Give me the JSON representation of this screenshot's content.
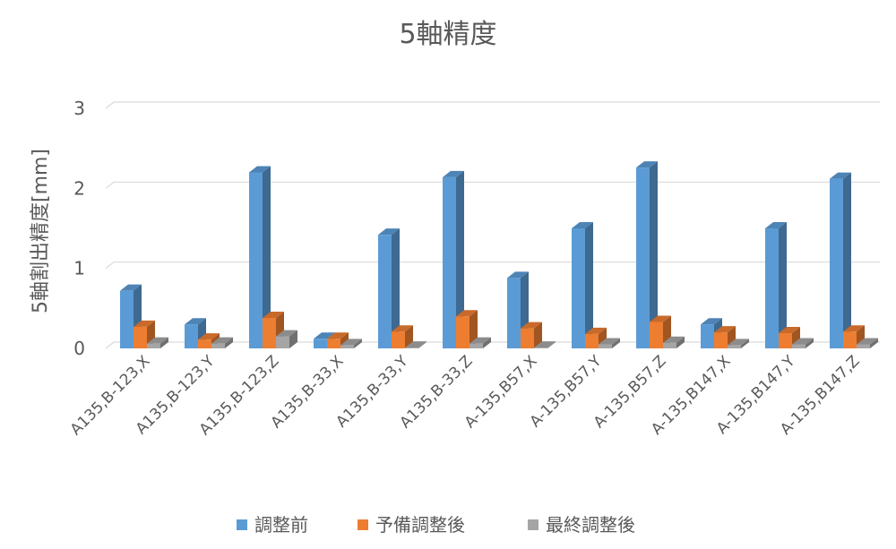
{
  "chart_data": {
    "type": "bar",
    "title": "5軸精度",
    "xlabel": "",
    "ylabel": "5軸割出精度[mm]",
    "ylim": [
      0,
      3
    ],
    "yticks": [
      "0",
      "1",
      "2",
      "3"
    ],
    "grid": true,
    "legend_position": "bottom",
    "categories": [
      "A135,B-123,X",
      "A135,B-123,Y",
      "A135,B-123,Z",
      "A135,B-33,X",
      "A135,B-33,Y",
      "A135,B-33,Z",
      "A-135,B57,X",
      "A-135,B57,Y",
      "A-135,B57,Z",
      "A-135,B147,X",
      "A-135,B147,Y",
      "A-135,B147,Z"
    ],
    "series": [
      {
        "name": "調整前",
        "color": "#5b9bd5",
        "values": [
          0.72,
          0.3,
          2.2,
          0.12,
          1.42,
          2.14,
          0.88,
          1.5,
          2.26,
          0.3,
          1.5,
          2.12
        ]
      },
      {
        "name": "予備調整後",
        "color": "#ed7d31",
        "values": [
          0.27,
          0.11,
          0.38,
          0.12,
          0.21,
          0.4,
          0.25,
          0.18,
          0.33,
          0.2,
          0.19,
          0.21
        ]
      },
      {
        "name": "最終調整後",
        "color": "#a5a5a5",
        "values": [
          0.06,
          0.06,
          0.15,
          0.04,
          0.01,
          0.06,
          0.01,
          0.05,
          0.07,
          0.04,
          0.05,
          0.05
        ]
      }
    ]
  }
}
